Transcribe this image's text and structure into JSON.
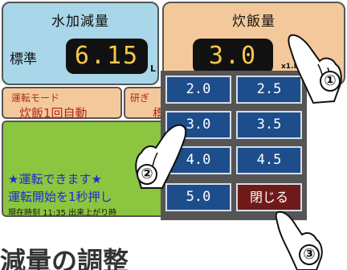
{
  "water": {
    "title": "水加減量",
    "level": "標準",
    "value": "6.15",
    "unit": "L"
  },
  "rice": {
    "title": "炊飯量",
    "value": "3.0",
    "multiplier": "x1.8L"
  },
  "mode": {
    "line1": "運転モード",
    "line2": "炊飯1回自動"
  },
  "wash": {
    "line1": "研ぎ",
    "line2": "標"
  },
  "status": {
    "line1": "★運転できます★",
    "line2": "運転開始を1秒押し",
    "line3": "現在時刻 11:35 出来上がり時"
  },
  "keypad": {
    "keys": [
      "2.0",
      "2.5",
      "3.0",
      "3.5",
      "4.0",
      "4.5",
      "5.0"
    ],
    "close_label": "閉じる"
  },
  "steps": {
    "s1": "①",
    "s2": "②",
    "s3": "③"
  },
  "footer": {
    "text": "減量の調整"
  },
  "colors": {
    "water_bg": "#a9d6e9",
    "rice_bg": "#f3c99b",
    "status_bg": "#8cc540",
    "key_bg": "#1e4d8c",
    "close_bg": "#6f1a1a",
    "readout": "#f6c84a"
  }
}
